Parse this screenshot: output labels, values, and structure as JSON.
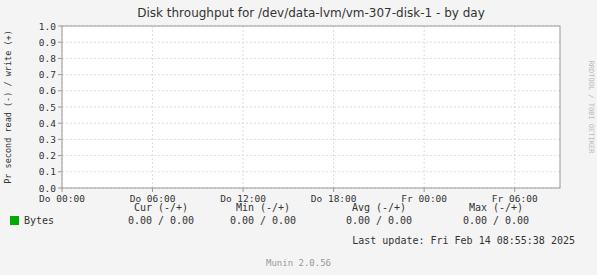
{
  "chart_data": {
    "type": "line",
    "title": "Disk throughput for /dev/data-lvm/vm-307-disk-1 - by day",
    "y_label": "Pr second read (-) / write (+)",
    "xlim": [
      0,
      5.5
    ],
    "xticks": [
      {
        "value": 0,
        "label": "Do 00:00"
      },
      {
        "value": 1,
        "label": "Do 06:00"
      },
      {
        "value": 2,
        "label": "Do 12:00"
      },
      {
        "value": 3,
        "label": "Do 18:00"
      },
      {
        "value": 4,
        "label": "Fr 00:00"
      },
      {
        "value": 5,
        "label": "Fr 06:00"
      }
    ],
    "ylim": [
      0.0,
      1.0
    ],
    "yticks": [
      {
        "value": 0,
        "label": "0.0"
      },
      0.1,
      0.2,
      0.3,
      0.4,
      0.5,
      0.6,
      0.7,
      0.8,
      0.9,
      {
        "value": 1,
        "label": "1.0"
      }
    ],
    "grid": true,
    "series": [
      {
        "name": "Bytes",
        "color": "#00aa00",
        "values": [],
        "stats": [
          {
            "name": "Cur (-/+)",
            "values": [
              0,
              0
            ],
            "value_labels": [
              "0.00",
              "0.00"
            ]
          },
          {
            "name": "Min (-/+)",
            "values": [
              0,
              0
            ],
            "value_labels": [
              "0.00",
              "0.00"
            ]
          },
          {
            "name": "Avg (-/+)",
            "values": [
              0,
              0
            ],
            "value_labels": [
              "0.00",
              "0.00"
            ]
          },
          {
            "name": "Max (-/+)",
            "values": [
              0,
              0
            ],
            "value_labels": [
              "0.00",
              "0.00"
            ]
          }
        ]
      }
    ],
    "annotations": [
      "Last update: Fri Feb 14 08:55:38 2025",
      "Munin 2.0.56",
      "RRDTOOL / TOBI OETIKER"
    ]
  }
}
